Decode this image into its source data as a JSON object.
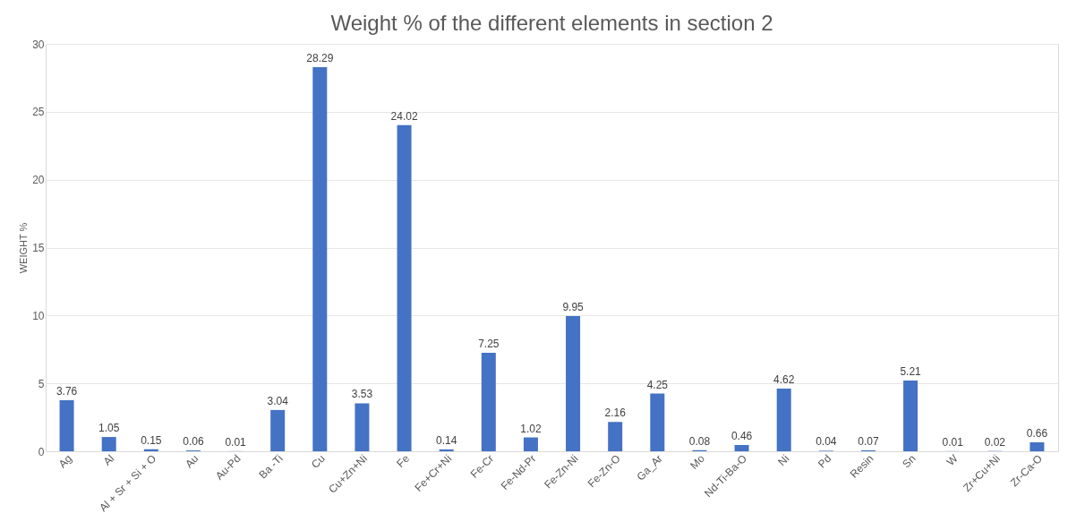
{
  "chart_data": {
    "type": "bar",
    "title": "Weight % of the different elements in section 2",
    "ylabel": "WEIGHT %",
    "categories": [
      "Ag",
      "Al",
      "Al + Sr + Si + O",
      "Au",
      "Au-Pd",
      "Ba -Ti",
      "Cu",
      "Cu+Zn+Ni",
      "Fe",
      "Fe+Cr+Ni",
      "Fe-Cr",
      "Fe-Nd-Pr",
      "Fe-Zn-Ni",
      "Fe-Zn-O",
      "Ga_Ar",
      "Mo",
      "Nd-Ti-Ba-O",
      "Ni",
      "Pd",
      "Resin",
      "Sn",
      "W",
      "Zr+Cu+Ni",
      "Zr-Ca-O"
    ],
    "values": [
      3.76,
      1.05,
      0.15,
      0.06,
      0.01,
      3.04,
      28.29,
      3.53,
      24.02,
      0.14,
      7.25,
      1.02,
      9.95,
      2.16,
      4.25,
      0.08,
      0.46,
      4.62,
      0.04,
      0.07,
      5.21,
      0.01,
      0.02,
      0.66
    ],
    "color": "#4472c4",
    "data_labels": true,
    "ylim": [
      0,
      30
    ],
    "yticks": [
      0,
      5,
      10,
      15,
      20,
      25,
      30
    ],
    "grid": "y"
  }
}
